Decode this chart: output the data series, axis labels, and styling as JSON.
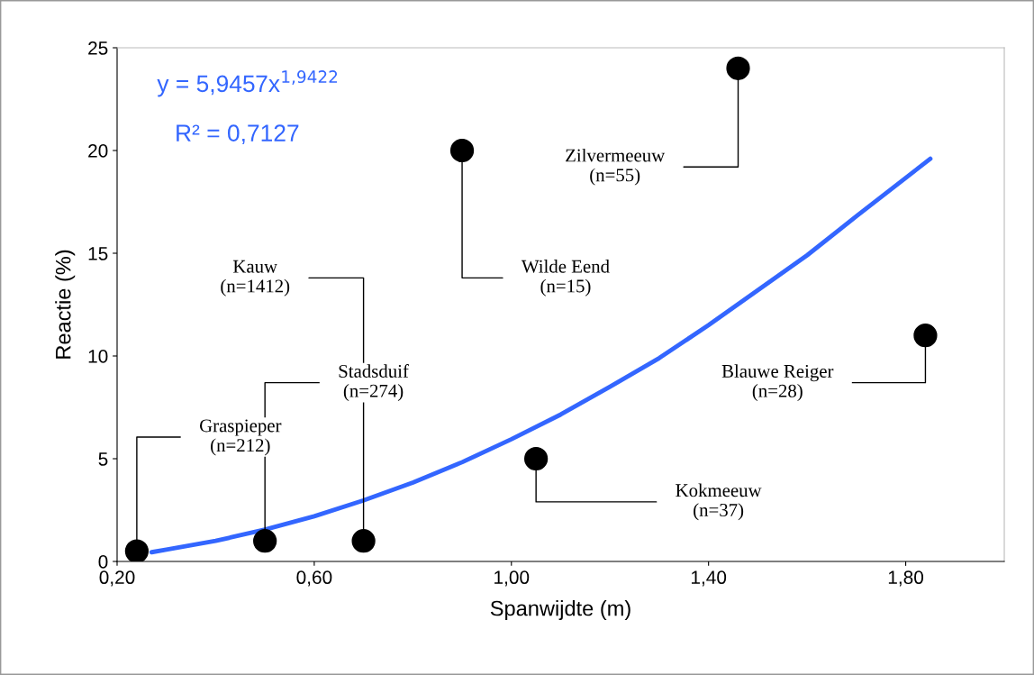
{
  "chart_data": {
    "type": "scatter",
    "xlabel": "Spanwijdte (m)",
    "ylabel": "Reactie (%)",
    "xlim": [
      0.2,
      2.0
    ],
    "xticks": [
      {
        "value": 0.2,
        "label": "0,20"
      },
      {
        "value": 0.6,
        "label": "0,60"
      },
      {
        "value": 1.0,
        "label": "1,00"
      },
      {
        "value": 1.4,
        "label": "1,40"
      },
      {
        "value": 1.8,
        "label": "1,80"
      }
    ],
    "ylim": [
      0,
      25
    ],
    "yticks": [
      0,
      5,
      10,
      15,
      20,
      25
    ],
    "grid": false,
    "series": [
      {
        "color": "#000000",
        "marker": "circle",
        "x": [
          0.24,
          0.5,
          0.7,
          0.9,
          1.05,
          1.46,
          1.84
        ],
        "values": [
          0.5,
          1,
          1,
          20,
          5,
          24,
          11
        ]
      },
      {
        "type": "line",
        "color": "#3366ff",
        "marker": "none",
        "line_style": "solid",
        "x": [
          0.27,
          0.3,
          0.4,
          0.5,
          0.6,
          0.7,
          0.8,
          0.9,
          1.0,
          1.1,
          1.2,
          1.3,
          1.4,
          1.5,
          1.6,
          1.7,
          1.85
        ],
        "values": [
          0.45,
          0.58,
          1.0,
          1.55,
          2.2,
          2.97,
          3.84,
          4.83,
          5.95,
          7.15,
          8.5,
          9.9,
          11.5,
          13.2,
          14.9,
          16.8,
          19.6
        ]
      }
    ],
    "annotations": [
      "y = 5,9457x$^{1,9422}$",
      "R² = 0,7127",
      {
        "text": "Graspieper\n(n=212)",
        "x": 0.24,
        "y": 0.5
      },
      {
        "text": "Stadsduif\n(n=274)",
        "x": 0.5,
        "y": 1
      },
      {
        "text": "Kauw\n(n=1412)",
        "x": 0.7,
        "y": 1
      },
      {
        "text": "Wilde Eend\n(n=15)",
        "x": 0.9,
        "y": 20
      },
      {
        "text": "Kokmeeuw\n(n=37)",
        "x": 1.05,
        "y": 5
      },
      {
        "text": "Zilvermeeuw\n(n=55)",
        "x": 1.46,
        "y": 24
      },
      {
        "text": "Blauwe Reiger\n(n=28)",
        "x": 1.84,
        "y": 11
      }
    ]
  }
}
